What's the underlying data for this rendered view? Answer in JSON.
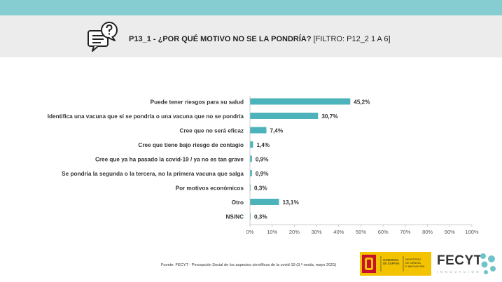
{
  "colors": {
    "top_band": "#86cdd2",
    "bar": "#4cb3bb",
    "header_bg": "#ececec",
    "fecyt_teal": "#6fc3c9"
  },
  "header": {
    "code": "P13_1 -",
    "question": "¿POR QUÉ MOTIVO NO SE LA PONDRÍA?",
    "filter": "[FILTRO: P12_2 1 A 6]",
    "icon": "question-chat-icon"
  },
  "chart_data": {
    "type": "bar",
    "orientation": "horizontal",
    "categories": [
      "Puede tener riesgos para su salud",
      "Identifica una vacuna que sí se pondría o una vacuna que no se pondría",
      "Cree que no será eficaz",
      "Cree que tiene bajo riesgo de contagio",
      "Cree que ya ha pasado la covid-19 / ya no es tan grave",
      "Se pondría la segunda o la tercera, no la primera vacuna que salga",
      "Por motivos económicos",
      "Otro",
      "NS/NC"
    ],
    "values": [
      45.2,
      30.7,
      7.4,
      1.4,
      0.9,
      0.9,
      0.3,
      13.1,
      0.3
    ],
    "value_labels": [
      "45,2%",
      "30,7%",
      "7,4%",
      "1,4%",
      "0,9%",
      "0,9%",
      "0,3%",
      "13,1%",
      "0,3%"
    ],
    "xlim": [
      0,
      100
    ],
    "x_ticks": [
      "0%",
      "10%",
      "20%",
      "30%",
      "40%",
      "50%",
      "60%",
      "70%",
      "80%",
      "90%",
      "100%"
    ],
    "grid": false,
    "legend": "none"
  },
  "footer": {
    "source": "Fuente: FECYT - Percepción Social de los aspectos científicos de la covid-19 (3.ª ronda, mayo 2021)",
    "gov_logo_lines": [
      "GOBIERNO",
      "DE ESPAÑA",
      "MINISTERIO",
      "DE CIENCIA",
      "E INNOVACIÓN"
    ],
    "fecyt_name": "FECYT",
    "fecyt_tagline": "INNOVACIÓN"
  }
}
